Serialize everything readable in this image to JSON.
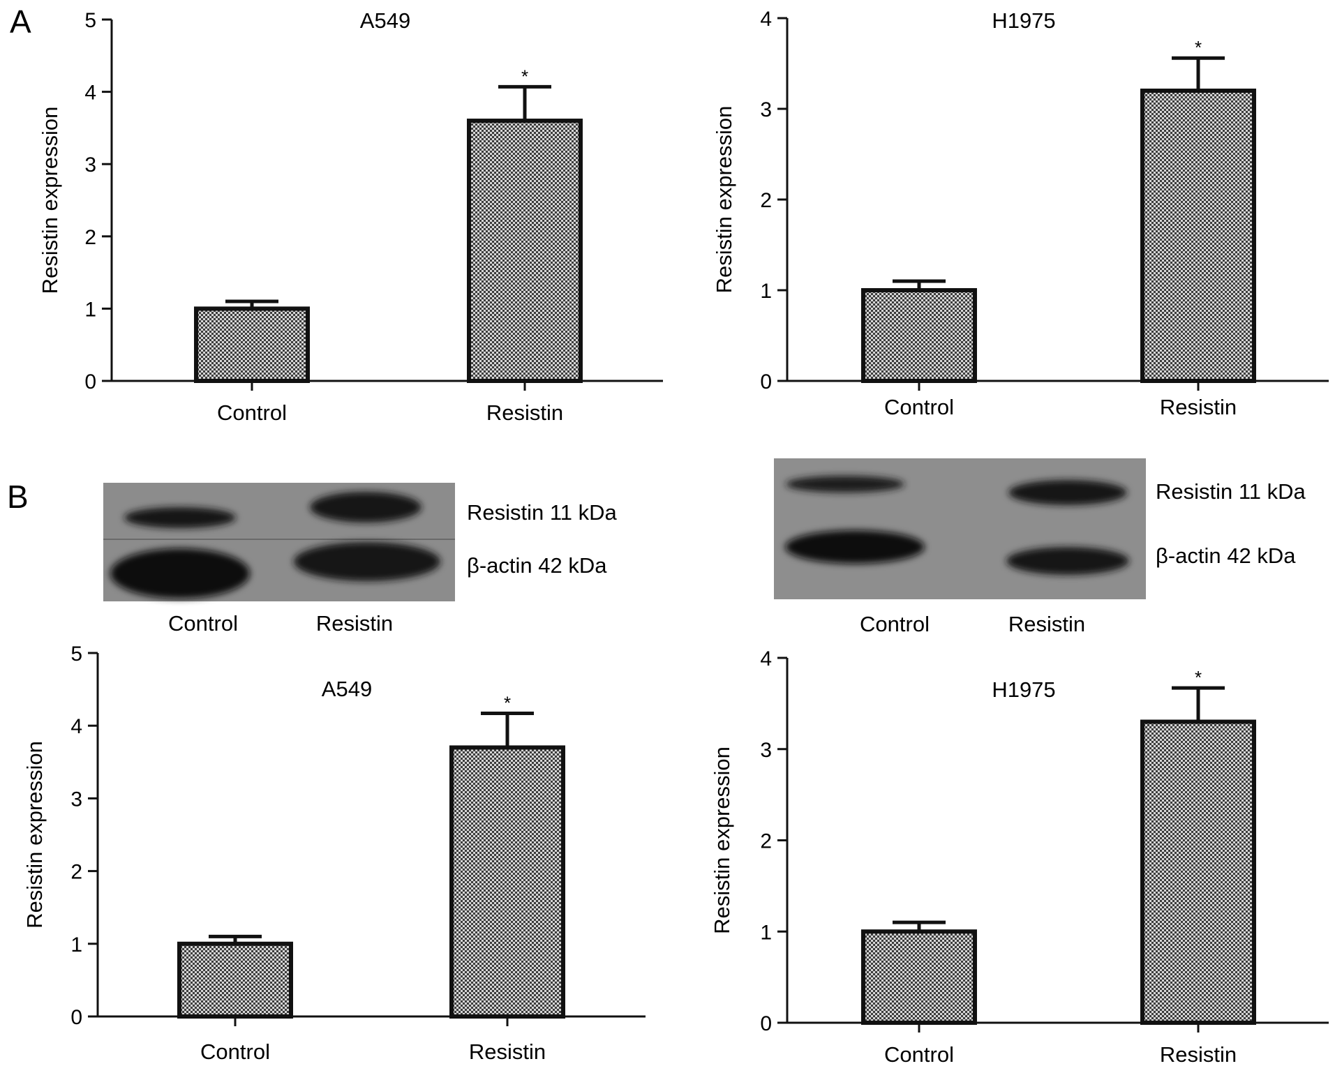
{
  "figure": {
    "panel_a_label": "A",
    "panel_b_label": "B"
  },
  "blots": [
    {
      "band_labels": [
        "Resistin 11 kDa",
        "β-actin 42 kDa"
      ],
      "lane_labels": [
        "Control",
        "Resistin"
      ]
    },
    {
      "band_labels": [
        "Resistin 11 kDa",
        "β-actin 42 kDa"
      ],
      "lane_labels": [
        "Control",
        "Resistin"
      ]
    }
  ],
  "colors": {
    "bar_fill_light": "#d6d6d6",
    "bar_fill_dark": "#3c3c3c",
    "axis": "#111111",
    "blot_background": "#8a8a8a",
    "blot_band": "#141414"
  },
  "chart_data": [
    {
      "type": "bar",
      "title": "A549",
      "ylabel": "Resistin expression",
      "categories": [
        "Control",
        "Resistin"
      ],
      "values": [
        1.0,
        3.6
      ],
      "error": [
        0.1,
        0.47
      ],
      "significance": [
        "",
        "*"
      ],
      "ylim": [
        0,
        5
      ],
      "yticks": [
        0,
        1,
        2,
        3,
        4,
        5
      ],
      "grid": false
    },
    {
      "type": "bar",
      "title": "H1975",
      "ylabel": "Resistin expression",
      "categories": [
        "Control",
        "Resistin"
      ],
      "values": [
        1.0,
        3.2
      ],
      "error": [
        0.1,
        0.36
      ],
      "significance": [
        "",
        "*"
      ],
      "ylim": [
        0,
        4
      ],
      "yticks": [
        0,
        1,
        2,
        3,
        4
      ],
      "grid": false
    },
    {
      "type": "bar",
      "title": "A549",
      "ylabel": "Resistin expression",
      "categories": [
        "Control",
        "Resistin"
      ],
      "values": [
        1.0,
        3.7
      ],
      "error": [
        0.1,
        0.47
      ],
      "significance": [
        "",
        "*"
      ],
      "ylim": [
        0,
        5
      ],
      "yticks": [
        0,
        1,
        2,
        3,
        4,
        5
      ],
      "grid": false
    },
    {
      "type": "bar",
      "title": "H1975",
      "ylabel": "Resistin expression",
      "categories": [
        "Control",
        "Resistin"
      ],
      "values": [
        1.0,
        3.3
      ],
      "error": [
        0.1,
        0.37
      ],
      "significance": [
        "",
        "*"
      ],
      "ylim": [
        0,
        4
      ],
      "yticks": [
        0,
        1,
        2,
        3,
        4
      ],
      "grid": false
    }
  ]
}
